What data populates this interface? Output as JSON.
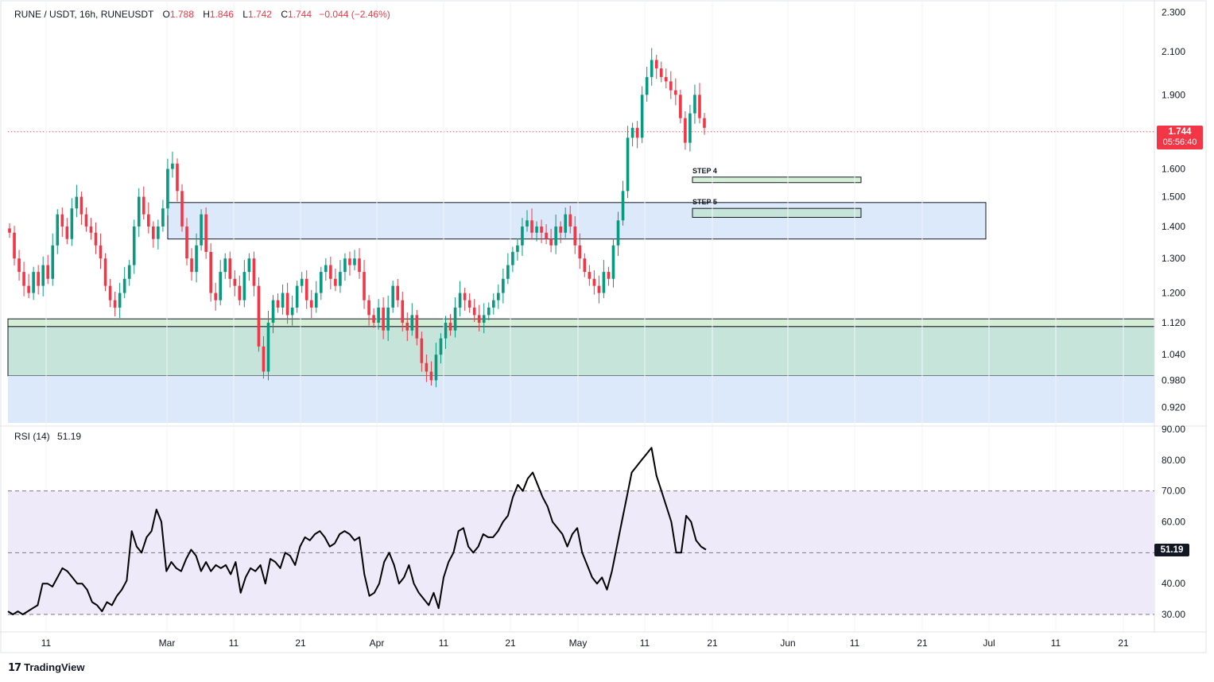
{
  "header": {
    "symbol": "RUNE / USDT, 16h, RUNEUSDT",
    "open_label": "O",
    "open": "1.788",
    "high_label": "H",
    "high": "1.846",
    "low_label": "L",
    "low": "1.742",
    "close_label": "C",
    "close": "1.744",
    "change": "−0.044 (−2.46%)"
  },
  "price_badge": {
    "price": "1.744",
    "countdown": "05:56:40"
  },
  "rsi": {
    "label": "RSI (14)",
    "value": "51.19"
  },
  "brand": "TradingView",
  "colors": {
    "up": "#089981",
    "down": "#f23645",
    "rsi_line": "#000000",
    "blue_zone": "#dbe9fb",
    "green_zone": "#c6e4d9",
    "rsi_band": "#efeafa"
  },
  "chart_data": [
    {
      "type": "candlestick",
      "title": "RUNE / USDT, 16h, RUNEUSDT",
      "price_scale_ticks": [
        "2.300",
        "2.100",
        "1.900",
        "1.600",
        "1.500",
        "1.400",
        "1.300",
        "1.200",
        "1.120",
        "1.040",
        "0.980",
        "0.920"
      ],
      "time_ticks": [
        "11",
        "Mar",
        "11",
        "21",
        "Apr",
        "11",
        "21",
        "May",
        "11",
        "21",
        "Jun",
        "11",
        "21",
        "Jul",
        "11",
        "21"
      ],
      "scale": "log",
      "last_price": 1.744,
      "zones": [
        {
          "label": "",
          "from": 1.36,
          "to": 1.48,
          "color": "#dbe9fb",
          "start": "Mar",
          "end": "Jul"
        },
        {
          "label": "STEP 4",
          "from": 1.55,
          "to": 1.57,
          "color": "#d5eed6"
        },
        {
          "label": "STEP 5",
          "from": 1.43,
          "to": 1.46,
          "color": "#c6e4d9"
        },
        {
          "label": "",
          "from": 1.11,
          "to": 1.13,
          "color": "#d5eed6"
        },
        {
          "label": "",
          "from": 0.99,
          "to": 1.11,
          "color": "#c6e4d9"
        },
        {
          "label": "",
          "from": 0.9,
          "to": 0.99,
          "color": "#dbe9fb"
        }
      ],
      "closes": [
        1.38,
        1.3,
        1.26,
        1.22,
        1.2,
        1.26,
        1.22,
        1.28,
        1.24,
        1.34,
        1.44,
        1.4,
        1.36,
        1.46,
        1.5,
        1.44,
        1.4,
        1.38,
        1.34,
        1.3,
        1.22,
        1.18,
        1.16,
        1.2,
        1.24,
        1.28,
        1.4,
        1.5,
        1.44,
        1.4,
        1.36,
        1.4,
        1.46,
        1.6,
        1.62,
        1.52,
        1.4,
        1.3,
        1.26,
        1.34,
        1.44,
        1.32,
        1.2,
        1.18,
        1.26,
        1.3,
        1.24,
        1.22,
        1.18,
        1.26,
        1.3,
        1.22,
        1.06,
        1.0,
        1.12,
        1.18,
        1.16,
        1.2,
        1.14,
        1.16,
        1.22,
        1.24,
        1.18,
        1.16,
        1.2,
        1.26,
        1.28,
        1.24,
        1.22,
        1.26,
        1.3,
        1.28,
        1.3,
        1.26,
        1.18,
        1.14,
        1.12,
        1.16,
        1.1,
        1.16,
        1.22,
        1.18,
        1.12,
        1.1,
        1.14,
        1.08,
        1.02,
        1.0,
        0.98,
        1.04,
        1.08,
        1.12,
        1.1,
        1.16,
        1.2,
        1.18,
        1.16,
        1.14,
        1.12,
        1.14,
        1.16,
        1.18,
        1.2,
        1.24,
        1.28,
        1.32,
        1.34,
        1.4,
        1.42,
        1.38,
        1.4,
        1.38,
        1.36,
        1.34,
        1.4,
        1.38,
        1.44,
        1.4,
        1.34,
        1.3,
        1.26,
        1.24,
        1.22,
        1.2,
        1.26,
        1.24,
        1.34,
        1.42,
        1.52,
        1.72,
        1.76,
        1.72,
        1.9,
        1.98,
        2.06,
        2.02,
        1.98,
        1.96,
        1.92,
        1.9,
        1.8,
        1.7,
        1.82,
        1.9,
        1.8,
        1.76
      ],
      "rsi": [
        31,
        30,
        31,
        30,
        31,
        32,
        33,
        40,
        40,
        39,
        42,
        45,
        44,
        42,
        40,
        40,
        38,
        34,
        33,
        31,
        34,
        33,
        36,
        38,
        41,
        57,
        52,
        50,
        55,
        57,
        64,
        60,
        44,
        47,
        45,
        44,
        48,
        51,
        49,
        44,
        47,
        44,
        46,
        45,
        46,
        43,
        47,
        37,
        42,
        45,
        44,
        46,
        40,
        48,
        47,
        45,
        50,
        49,
        46,
        52,
        55,
        54,
        56,
        57,
        55,
        52,
        53,
        56,
        57,
        56,
        54,
        55,
        43,
        36,
        37,
        40,
        47,
        50,
        46,
        40,
        42,
        46,
        40,
        37,
        35,
        33,
        37,
        32,
        42,
        47,
        50,
        57,
        58,
        52,
        50,
        52,
        56,
        55,
        55,
        57,
        60,
        62,
        68,
        72,
        70,
        74,
        76,
        72,
        68,
        65,
        60,
        58,
        56,
        52,
        56,
        58,
        50,
        46,
        42,
        40,
        42,
        38,
        44,
        52,
        60,
        68,
        76,
        78,
        80,
        82,
        84,
        75,
        70,
        65,
        60,
        50,
        50,
        62,
        60,
        54,
        52,
        51
      ],
      "rsi_scale_ticks": [
        "90.00",
        "80.00",
        "70.00",
        "60.00",
        "40.00",
        "30.00"
      ],
      "rsi_band": [
        30,
        70
      ],
      "rsi_midline": 50,
      "rsi_last": 51.19
    }
  ]
}
